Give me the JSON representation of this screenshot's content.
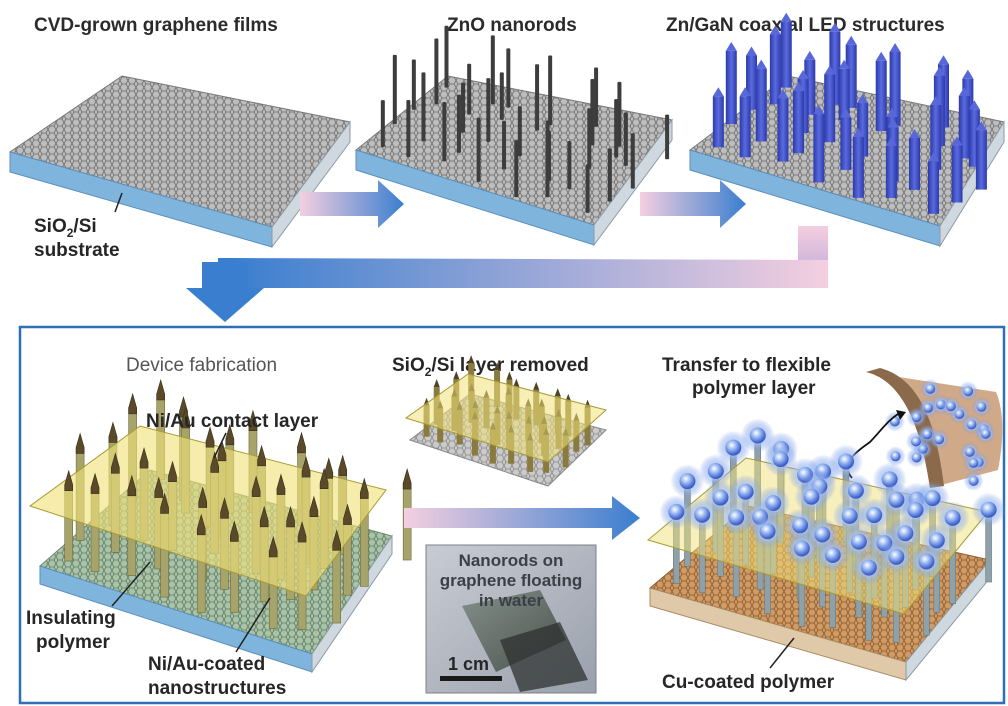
{
  "diagram": {
    "top": {
      "step1_title": "CVD-grown graphene films",
      "step2_title": "ZnO nanorods",
      "step3_title": "Zn/GaN coaxial LED structures",
      "substrate_label_a": "SiO",
      "substrate_label_sub": "2",
      "substrate_label_b": "/Si",
      "substrate_label_line2": "substrate"
    },
    "panel": {
      "section_title": "Device fabrication",
      "contact_layer_label": "Ni/Au contact layer",
      "insulating_label_line1": "Insulating",
      "insulating_label_line2": "polymer",
      "coated_label_line1": "Ni/Au-coated",
      "coated_label_line2": "nanostructures",
      "removed_title_a": "SiO",
      "removed_title_sub": "2",
      "removed_title_b": "/Si layer removed",
      "photo_caption_line1": "Nanorods on",
      "photo_caption_line2": "graphene floating",
      "photo_caption_line3": "in water",
      "scale_bar_label": "1 cm",
      "transfer_title_line1": "Transfer to flexible",
      "transfer_title_line2": "polymer layer",
      "cu_label": "Cu-coated polymer"
    },
    "colors": {
      "panel_border": "#2f6fb6",
      "arrow_blue": "#3a7ecf",
      "arrow_pink": "#f3c9dc",
      "substrate_blue": "#7fb4dc",
      "graphene_gray": "#9a9a9a",
      "nanorod_dark": "#3d3d3d",
      "led_blue": "#3f4fc0",
      "contact_yellow": "#f1e27a",
      "cu_orange": "#c98a4d"
    }
  }
}
